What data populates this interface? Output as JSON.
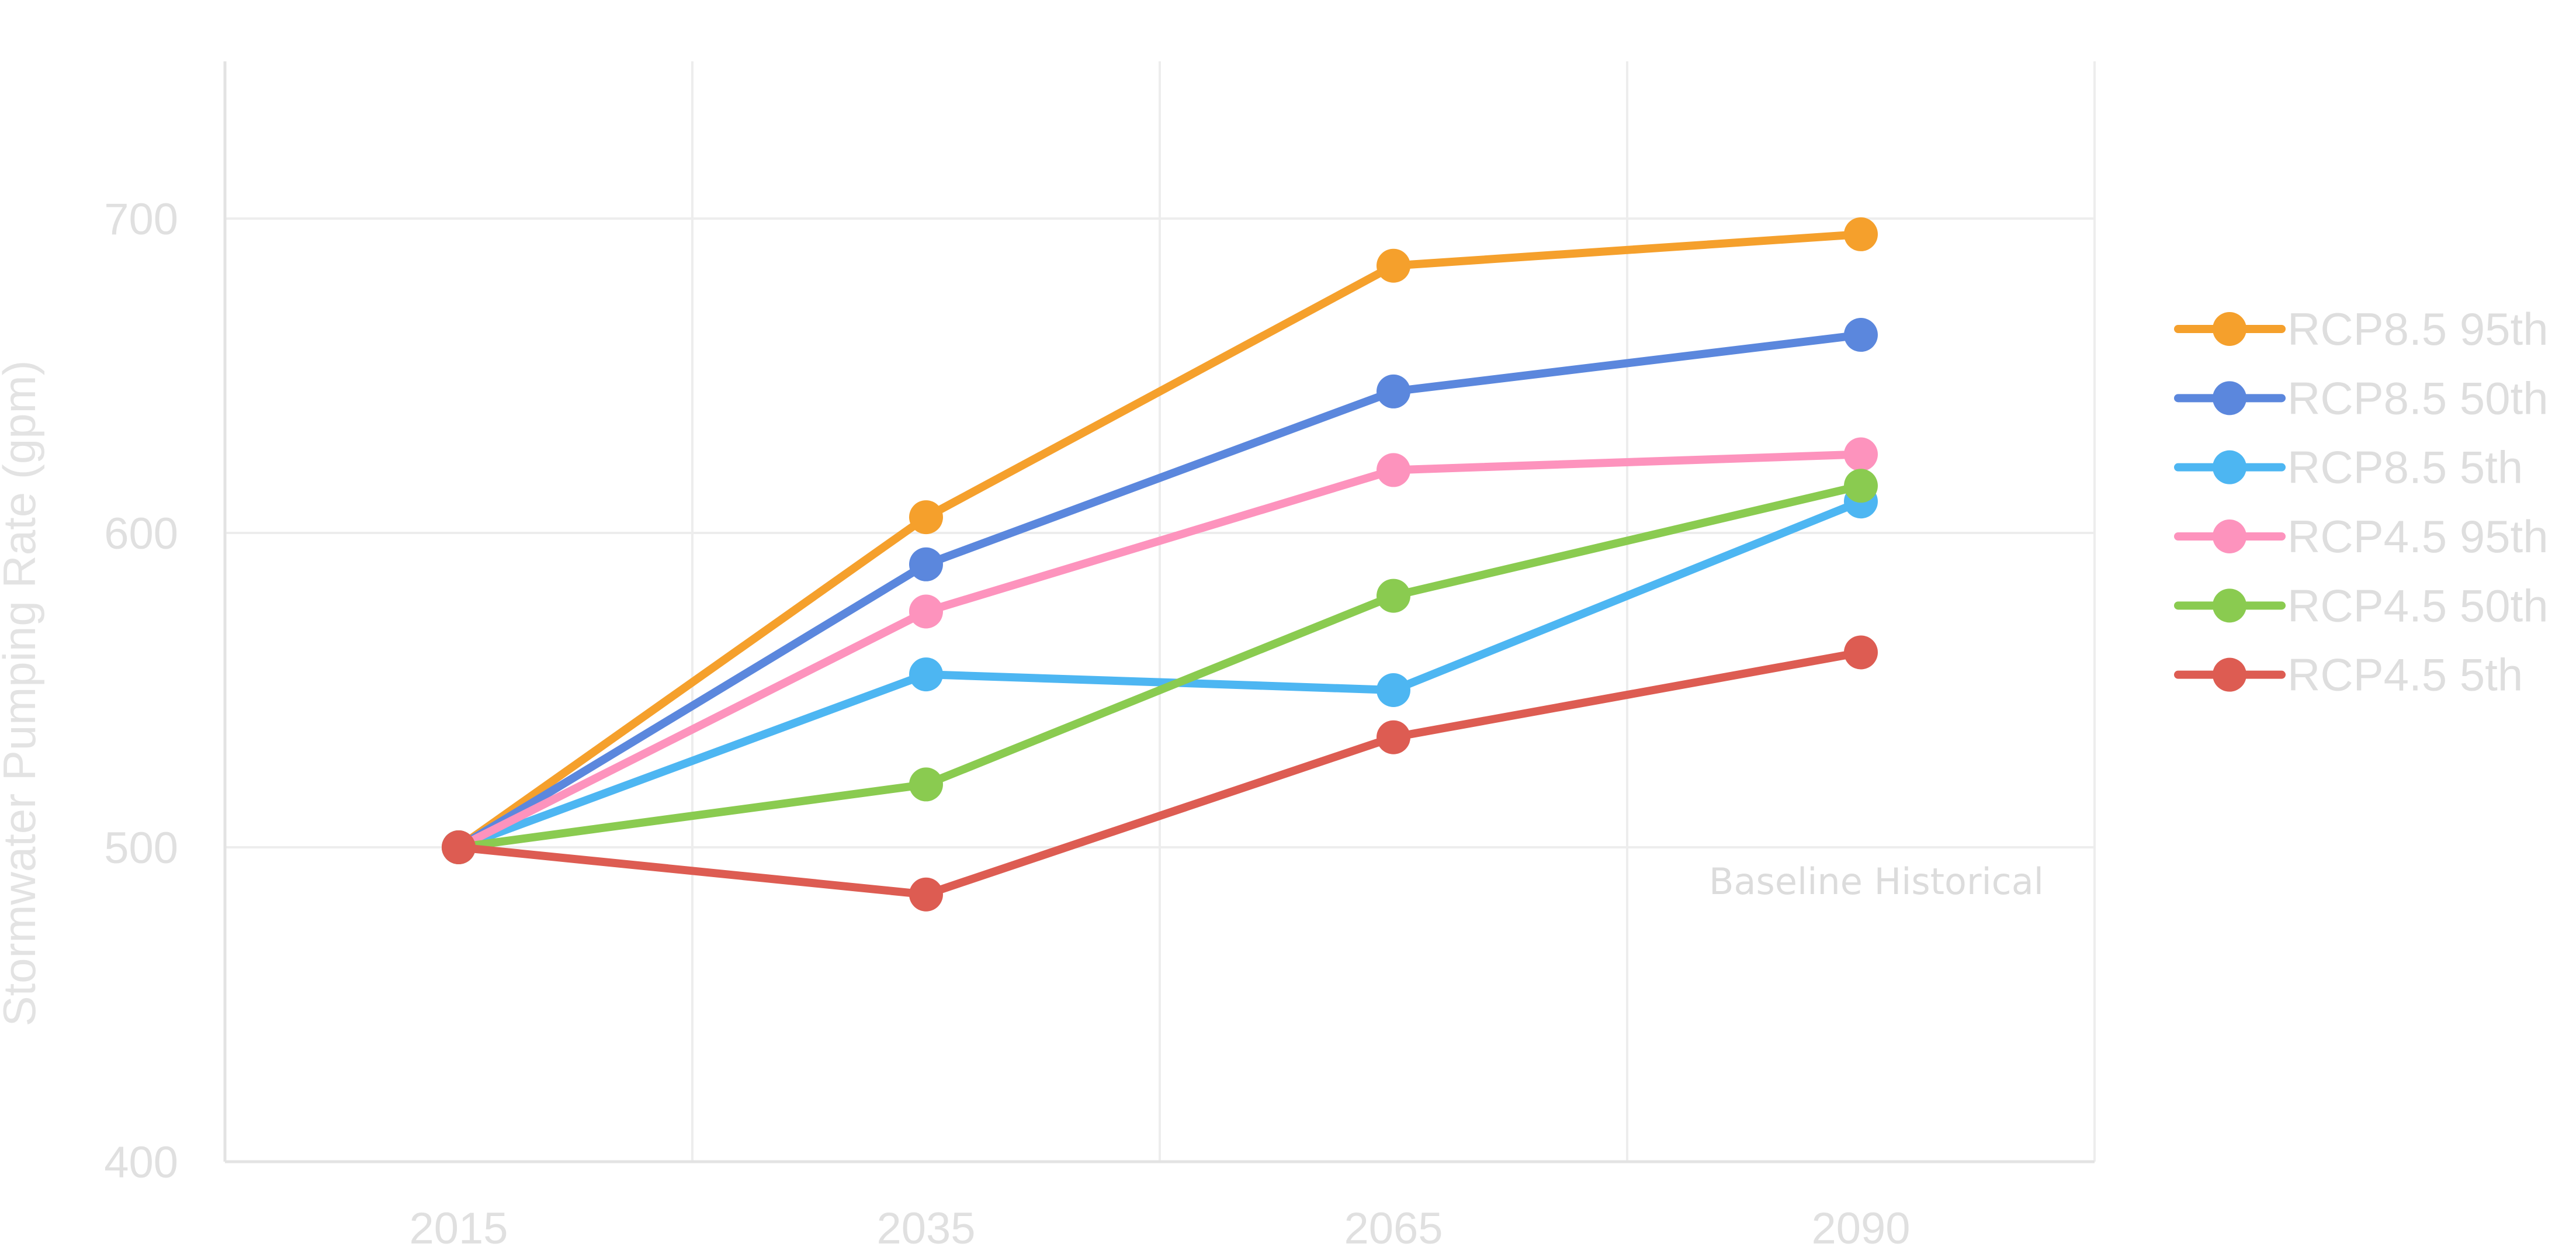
{
  "chart_data": {
    "type": "line",
    "title": "",
    "xlabel": "",
    "ylabel": "Stormwater Pumping Rate (gpm)",
    "categories": [
      "2015",
      "2035",
      "2065",
      "2090"
    ],
    "ylim": [
      400,
      750
    ],
    "yticks": [
      400,
      500,
      600,
      700
    ],
    "grid": true,
    "legend_position": "right",
    "annotation": "Baseline Historical",
    "series": [
      {
        "name": "RCP8.5 95th",
        "color": "#f5a02c",
        "values": [
          500,
          605,
          685,
          695
        ]
      },
      {
        "name": "RCP8.5 50th",
        "color": "#5b87dd",
        "values": [
          500,
          590,
          645,
          663
        ]
      },
      {
        "name": "RCP8.5 5th",
        "color": "#4db6f2",
        "values": [
          500,
          555,
          550,
          610
        ]
      },
      {
        "name": "RCP4.5 95th",
        "color": "#fd93bd",
        "values": [
          500,
          575,
          620,
          625
        ]
      },
      {
        "name": "RCP4.5 50th",
        "color": "#8acb50",
        "values": [
          500,
          520,
          580,
          615
        ]
      },
      {
        "name": "RCP4.5 5th",
        "color": "#dd5c52",
        "values": [
          500,
          485,
          535,
          562
        ]
      }
    ]
  }
}
